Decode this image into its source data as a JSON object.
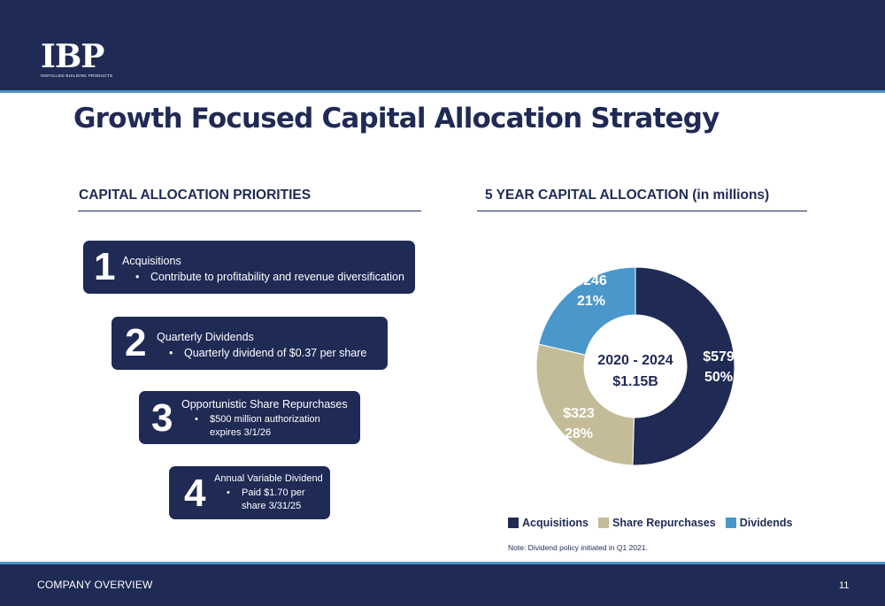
{
  "header": {
    "logo": {
      "mark": "IBP",
      "subtitle": "INSTALLED BUILDING PRODUCTS"
    },
    "title": "Growth Focused Capital Allocation Strategy"
  },
  "left_section": {
    "heading": "CAPITAL ALLOCATION PRIORITIES",
    "priorities": [
      {
        "number": "1",
        "title": "Acquisitions",
        "bullet": [
          "Contribute to profitability and revenue diversification"
        ]
      },
      {
        "number": "2",
        "title": "Quarterly Dividends",
        "bullet": [
          "Quarterly dividend of $0.37 per share"
        ]
      },
      {
        "number": "3",
        "title": "Opportunistic Share Repurchases",
        "bullet": [
          "$500 million authorization",
          "expires 3/1/26"
        ]
      },
      {
        "number": "4",
        "title": "Annual Variable Dividend",
        "bullet": [
          "Paid $1.70 per",
          "share 3/31/25"
        ]
      }
    ]
  },
  "right_section": {
    "heading": "5 YEAR CAPITAL ALLOCATION (in millions)",
    "note": "Note: Dividend policy initiated in Q1 2021."
  },
  "chart_data": {
    "type": "pie",
    "center_label": [
      "2020 - 2024",
      "$1.15B"
    ],
    "categories": [
      "Acquisitions",
      "Share Repurchases",
      "Dividends"
    ],
    "values": [
      579,
      323,
      246
    ],
    "value_labels": [
      "$579",
      "$323",
      "$246"
    ],
    "percent_labels": [
      "50%",
      "28%",
      "21%"
    ],
    "colors": [
      "#1f2a55",
      "#c4bc98",
      "#4a97cc"
    ],
    "legend": "bottom"
  },
  "footer": {
    "section": "COMPANY OVERVIEW",
    "page_number": "11"
  }
}
